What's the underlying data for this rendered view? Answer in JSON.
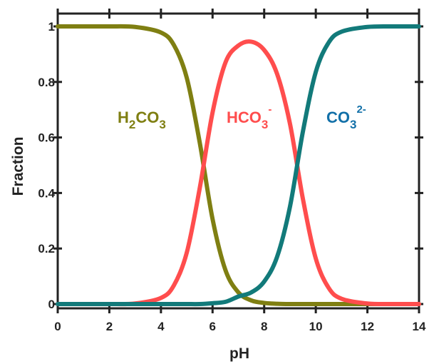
{
  "chart_data": {
    "type": "line",
    "xlabel": "pH",
    "ylabel": "Fraction",
    "xlim": [
      0,
      14
    ],
    "ylim": [
      0,
      1
    ],
    "x_ticks": [
      "0",
      "2",
      "4",
      "6",
      "8",
      "10",
      "12",
      "14"
    ],
    "y_ticks": [
      "0",
      "0.2",
      "0.4",
      "0.6",
      "0.8",
      "1"
    ],
    "grid": false,
    "legend": "inline-labels",
    "x": [
      0,
      1,
      2,
      3,
      4,
      4.5,
      5,
      5.5,
      6,
      6.5,
      7,
      7.5,
      8,
      8.5,
      9,
      9.5,
      10,
      10.5,
      11,
      12,
      13,
      14
    ],
    "series": [
      {
        "name": "H2CO3",
        "color": "#7f7f12",
        "label_main": "H",
        "label_sub": "2",
        "label_main2": "CO",
        "label_sub2": "3",
        "values": [
          1.0,
          1.0,
          1.0,
          0.998,
          0.978,
          0.933,
          0.815,
          0.583,
          0.306,
          0.122,
          0.042,
          0.013,
          0.004,
          0.001,
          0.0,
          0.0,
          0.0,
          0.0,
          0.0,
          0.0,
          0.0,
          0.0
        ]
      },
      {
        "name": "HCO3-",
        "color": "#ff4d4d",
        "label_main": "HCO",
        "label_sub": "3",
        "label_sup": "-",
        "values": [
          0.0,
          0.0,
          0.0,
          0.002,
          0.022,
          0.067,
          0.185,
          0.416,
          0.69,
          0.87,
          0.931,
          0.945,
          0.915,
          0.829,
          0.649,
          0.379,
          0.164,
          0.058,
          0.019,
          0.002,
          0.0,
          0.0
        ]
      },
      {
        "name": "CO32-",
        "color": "#127a7a",
        "label_main": "CO",
        "label_sub": "3",
        "label_sup": "2-",
        "values": [
          0.0,
          0.0,
          0.0,
          0.0,
          0.0,
          0.0,
          0.0,
          0.0,
          0.003,
          0.008,
          0.027,
          0.042,
          0.081,
          0.17,
          0.351,
          0.621,
          0.836,
          0.942,
          0.981,
          0.998,
          1.0,
          1.0
        ]
      }
    ]
  }
}
